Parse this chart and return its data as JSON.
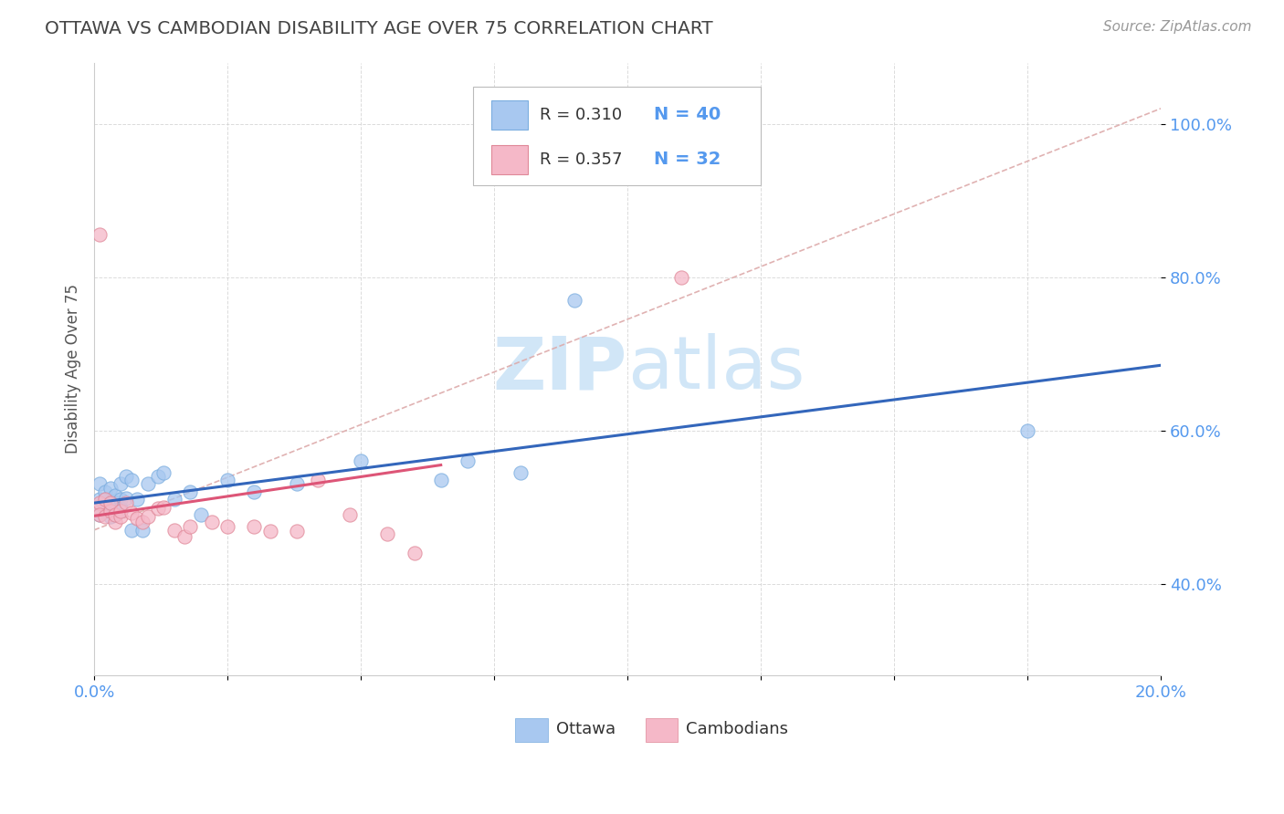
{
  "title": "OTTAWA VS CAMBODIAN DISABILITY AGE OVER 75 CORRELATION CHART",
  "source": "Source: ZipAtlas.com",
  "ylabel": "Disability Age Over 75",
  "xlim": [
    0.0,
    0.2
  ],
  "ylim": [
    0.28,
    1.08
  ],
  "x_tick_positions": [
    0.0,
    0.025,
    0.05,
    0.075,
    0.1,
    0.125,
    0.15,
    0.175,
    0.2
  ],
  "x_tick_labels": [
    "0.0%",
    "",
    "",
    "",
    "",
    "",
    "",
    "",
    "20.0%"
  ],
  "y_tick_positions": [
    0.4,
    0.6,
    0.8,
    1.0
  ],
  "y_tick_labels": [
    "40.0%",
    "60.0%",
    "80.0%",
    "100.0%"
  ],
  "ottawa_R": "0.310",
  "ottawa_N": "40",
  "cambodian_R": "0.357",
  "cambodian_N": "32",
  "ottawa_color": "#a8c8f0",
  "ottawa_edge": "#7aaddf",
  "cambodian_color": "#f5b8c8",
  "cambodian_edge": "#e08898",
  "ottawa_line_color": "#3366bb",
  "cambodian_line_color": "#dd5577",
  "dash_line_color": "#ddaaaa",
  "background_color": "#ffffff",
  "grid_color": "#cccccc",
  "title_color": "#444444",
  "tick_color": "#5599ee",
  "watermark_color": "#cce4f7",
  "ottawa_x": [
    0.0005,
    0.001,
    0.001,
    0.001,
    0.002,
    0.002,
    0.002,
    0.002,
    0.003,
    0.003,
    0.003,
    0.003,
    0.004,
    0.004,
    0.004,
    0.005,
    0.005,
    0.005,
    0.005,
    0.006,
    0.006,
    0.007,
    0.007,
    0.008,
    0.009,
    0.01,
    0.012,
    0.013,
    0.015,
    0.018,
    0.02,
    0.025,
    0.03,
    0.038,
    0.05,
    0.065,
    0.07,
    0.08,
    0.09,
    0.175
  ],
  "ottawa_y": [
    0.5,
    0.51,
    0.49,
    0.53,
    0.495,
    0.51,
    0.5,
    0.52,
    0.488,
    0.505,
    0.525,
    0.498,
    0.49,
    0.515,
    0.505,
    0.495,
    0.51,
    0.53,
    0.498,
    0.512,
    0.54,
    0.47,
    0.535,
    0.51,
    0.47,
    0.53,
    0.54,
    0.545,
    0.51,
    0.52,
    0.49,
    0.535,
    0.52,
    0.53,
    0.56,
    0.535,
    0.56,
    0.545,
    0.77,
    0.6
  ],
  "cambodian_x": [
    0.0005,
    0.001,
    0.001,
    0.002,
    0.002,
    0.003,
    0.003,
    0.004,
    0.004,
    0.005,
    0.005,
    0.006,
    0.007,
    0.008,
    0.009,
    0.01,
    0.012,
    0.013,
    0.015,
    0.017,
    0.018,
    0.022,
    0.025,
    0.03,
    0.033,
    0.038,
    0.042,
    0.048,
    0.055,
    0.06,
    0.001,
    0.11
  ],
  "cambodian_y": [
    0.5,
    0.505,
    0.49,
    0.488,
    0.51,
    0.495,
    0.505,
    0.48,
    0.49,
    0.488,
    0.495,
    0.505,
    0.492,
    0.485,
    0.48,
    0.488,
    0.498,
    0.5,
    0.47,
    0.462,
    0.475,
    0.48,
    0.475,
    0.475,
    0.468,
    0.468,
    0.535,
    0.49,
    0.465,
    0.44,
    0.855,
    0.8
  ]
}
